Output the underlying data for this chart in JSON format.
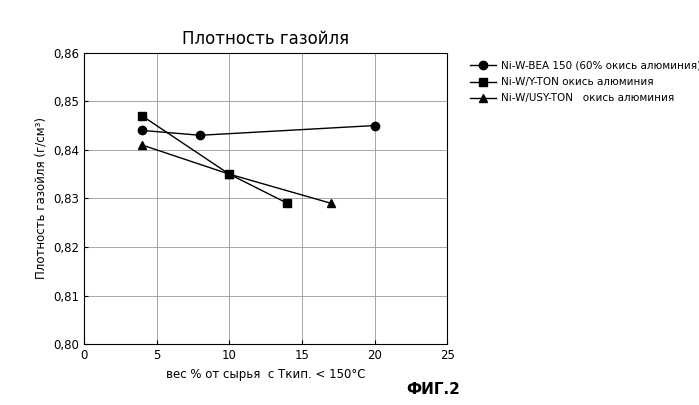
{
  "title": "Плотность газойля",
  "xlabel": "вес % от сырья  с Ткип. < 150°С",
  "ylabel": "Плотность газойля (г/см³)",
  "fig_label": "ФИГ.2",
  "xlim": [
    0,
    25
  ],
  "ylim": [
    0.8,
    0.86
  ],
  "xticks": [
    0,
    5,
    10,
    15,
    20,
    25
  ],
  "yticks": [
    0.8,
    0.81,
    0.82,
    0.83,
    0.84,
    0.85,
    0.86
  ],
  "series": [
    {
      "label": "Ni-W-BEA 150 (60% окись алюминия)",
      "x": [
        4,
        8,
        20
      ],
      "y": [
        0.844,
        0.843,
        0.845
      ],
      "color": "#000000",
      "marker": "o",
      "markersize": 6,
      "linewidth": 1.0
    },
    {
      "label": "Ni-W/Y-TON окись алюминия",
      "x": [
        4,
        10,
        14
      ],
      "y": [
        0.847,
        0.835,
        0.829
      ],
      "color": "#000000",
      "marker": "s",
      "markersize": 6,
      "linewidth": 1.0
    },
    {
      "label": "Ni-W/USY-TON   окись алюминия",
      "x": [
        4,
        10,
        17
      ],
      "y": [
        0.841,
        0.835,
        0.829
      ],
      "color": "#000000",
      "marker": "^",
      "markersize": 6,
      "linewidth": 1.0
    }
  ],
  "background_color": "#ffffff",
  "grid_color": "#999999",
  "title_fontsize": 12,
  "label_fontsize": 8.5,
  "tick_fontsize": 8.5,
  "legend_fontsize": 7.5,
  "fig_label_fontsize": 11
}
